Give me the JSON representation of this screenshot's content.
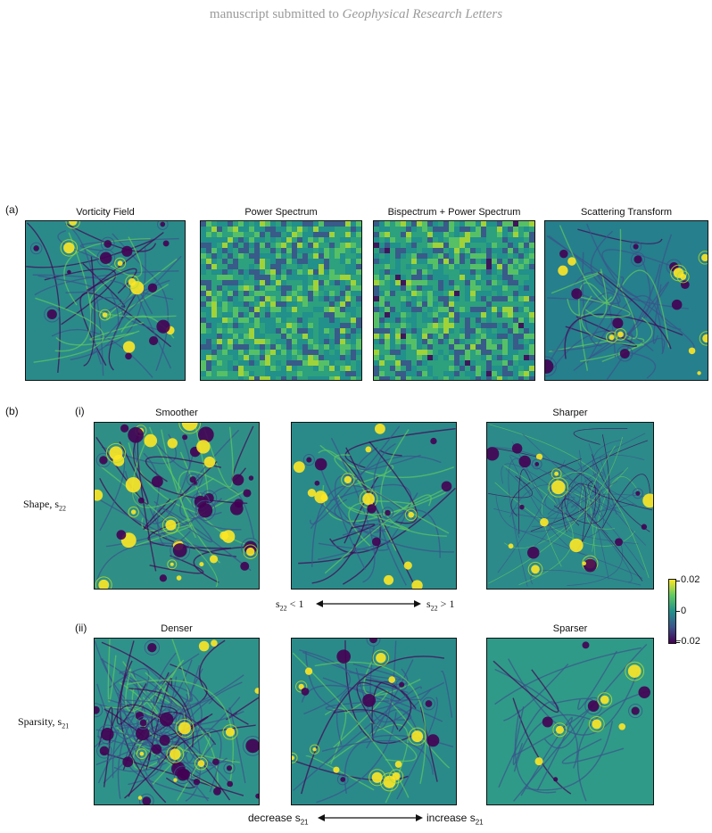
{
  "header": {
    "prefix": "manuscript submitted to",
    "journal": "Geophysical Research Letters"
  },
  "part_a": {
    "label": "(a)",
    "panels": [
      {
        "title": "Vorticity Field",
        "style": "vortex"
      },
      {
        "title": "Power Spectrum",
        "style": "noise"
      },
      {
        "title": "Bispectrum + Power Spectrum",
        "style": "noise2"
      },
      {
        "title": "Scattering Transform",
        "style": "scatter"
      }
    ]
  },
  "part_b": {
    "label": "(b)",
    "row_i": {
      "label": "(i)",
      "row_label": "Shape, s",
      "row_label_sub": "22",
      "titles": [
        "Smoother",
        "",
        "Sharper"
      ],
      "arrow_left": "s",
      "arrow_left_sub": "22",
      "arrow_left_rel": " < 1",
      "arrow_right": "s",
      "arrow_right_sub": "22",
      "arrow_right_rel": " > 1"
    },
    "row_ii": {
      "label": "(ii)",
      "row_label": "Sparsity, s",
      "row_label_sub": "21",
      "titles": [
        "Denser",
        "",
        "Sparser"
      ],
      "arrow_left": "decrease s",
      "arrow_left_sub": "21",
      "arrow_right": "increase s",
      "arrow_right_sub": "21"
    }
  },
  "colorbar": {
    "max": "0.02",
    "mid": "0",
    "min": "−0.02",
    "colors": [
      "#fde725",
      "#5ec962",
      "#21918c",
      "#3b528b",
      "#440154"
    ]
  }
}
